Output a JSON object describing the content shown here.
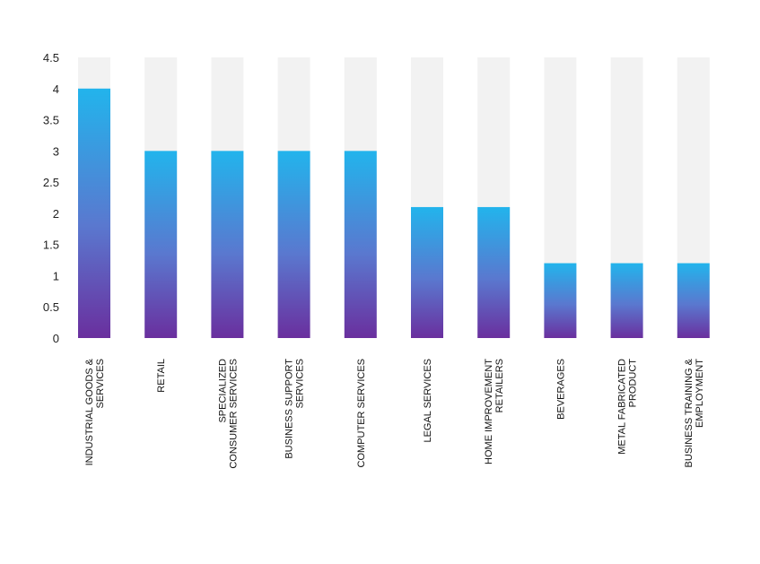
{
  "chart_data": {
    "type": "bar",
    "title": "",
    "xlabel": "",
    "ylabel": "",
    "ylim": [
      0,
      4.5
    ],
    "yticks": [
      "0",
      "0.5",
      "1",
      "1.5",
      "2",
      "2.5",
      "3",
      "3.5",
      "4",
      "4.5"
    ],
    "grid": false,
    "legend": "none",
    "categories": [
      [
        "INDUSTRIAL GOODS &",
        "SERVICES"
      ],
      [
        "RETAIL"
      ],
      [
        "SPECIALIZED",
        "CONSUMER SERVICES"
      ],
      [
        "BUSINESS SUPPORT",
        "SERVICES"
      ],
      [
        "COMPUTER SERVICES"
      ],
      [
        "LEGAL SERVICES"
      ],
      [
        "HOME IMPROVEMENT",
        "RETAILERS"
      ],
      [
        "BEVERAGES"
      ],
      [
        "METAL FABRICATED",
        "PRODUCT"
      ],
      [
        "BUSINESS TRAINING &",
        "EMPLOYMENT"
      ]
    ],
    "values": [
      4,
      3,
      3,
      3,
      3,
      2.1,
      2.1,
      1.2,
      1.2,
      1.2
    ],
    "background_bar_value": 4.5,
    "colors": {
      "bar_top": "#22b4ec",
      "bar_mid": "#5a78cf",
      "bar_bottom": "#6a2f9e",
      "background_bar": "#f2f2f2"
    }
  }
}
